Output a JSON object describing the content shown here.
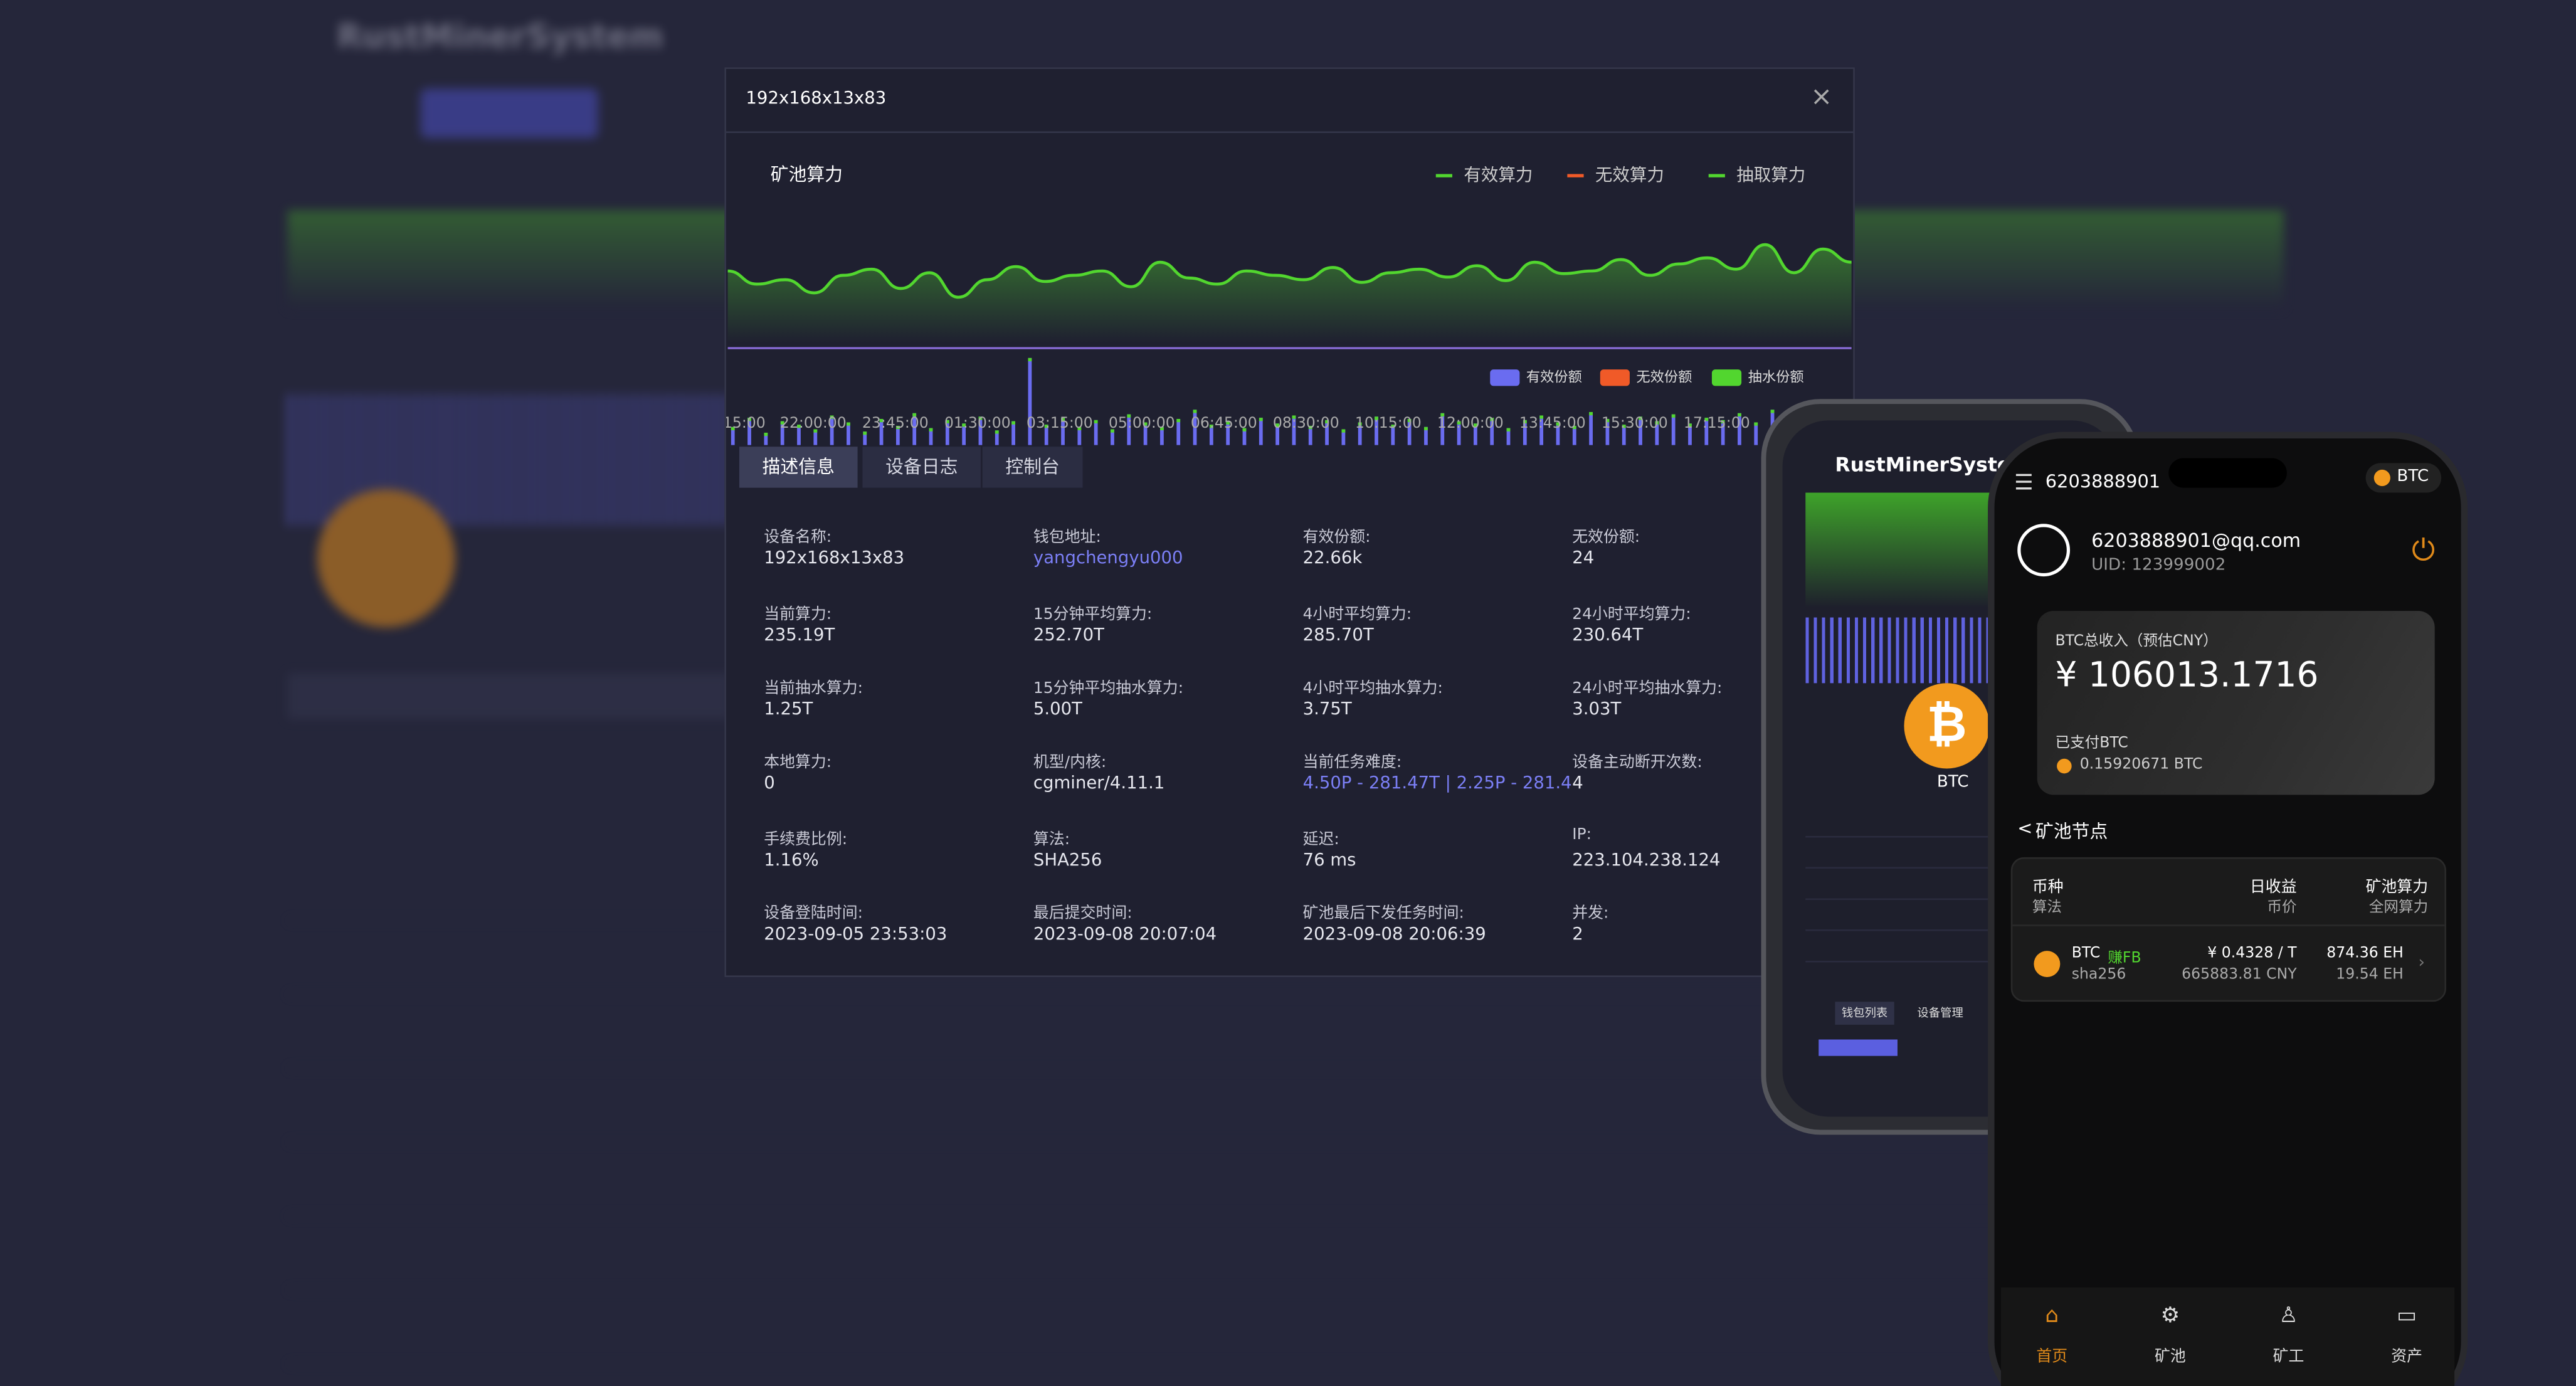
{
  "background": {
    "brand": "RustMinerSystem"
  },
  "modal": {
    "title": "192x168x13x83",
    "chart": {
      "title": "矿池算力",
      "line_legend": [
        "有效算力",
        "无效算力",
        "抽取算力"
      ],
      "line_colors": [
        "#52d62f",
        "#f05a28",
        "#52d62f"
      ],
      "bar_legend": [
        "有效份额",
        "无效份额",
        "抽水份额"
      ],
      "bar_colors": [
        "#6a6cf0",
        "#f05a28",
        "#52d62f"
      ],
      "x_labels": [
        "15:00",
        "22:00:00",
        "23:45:00",
        "01:30:00",
        "03:15:00",
        "05:00:00",
        "06:45:00",
        "08:30:00",
        "10:15:00",
        "12:00:00",
        "13:45:00",
        "15:30:00",
        "17:15:00"
      ],
      "hashrate_values": [
        60,
        45,
        50,
        35,
        55,
        62,
        40,
        58,
        30,
        50,
        65,
        48,
        55,
        60,
        42,
        70,
        52,
        45,
        60,
        55,
        50,
        64,
        47,
        58,
        62,
        53,
        66,
        49,
        70,
        57,
        60,
        73,
        55,
        68,
        75,
        62,
        90,
        58,
        85,
        70
      ],
      "share_values": [
        40,
        48,
        35,
        45,
        42,
        38,
        50,
        44,
        36,
        47,
        41,
        52,
        39,
        46,
        43,
        49,
        37,
        45,
        100,
        42,
        48,
        40,
        46,
        38,
        51,
        44,
        40,
        47,
        55,
        42,
        45,
        39,
        48,
        43,
        50,
        41,
        46,
        38,
        44,
        49,
        42,
        47,
        40,
        52,
        45,
        43,
        48,
        39,
        46,
        50,
        44,
        41,
        53,
        47,
        42,
        49,
        45,
        51,
        43,
        48,
        46,
        52,
        44,
        55,
        47,
        50,
        58,
        45
      ]
    },
    "tabs": [
      "描述信息",
      "设备日志",
      "控制台"
    ],
    "fields": [
      {
        "label": "设备名称:",
        "value": "192x168x13x83"
      },
      {
        "label": "钱包地址:",
        "value": "yangchengyu000"
      },
      {
        "label": "有效份额:",
        "value": "22.66k"
      },
      {
        "label": "无效份额:",
        "value": "24"
      },
      {
        "label": "当前算力:",
        "value": "235.19T"
      },
      {
        "label": "15分钟平均算力:",
        "value": "252.70T"
      },
      {
        "label": "4小时平均算力:",
        "value": "285.70T"
      },
      {
        "label": "24小时平均算力:",
        "value": "230.64T"
      },
      {
        "label": "当前抽水算力:",
        "value": "1.25T"
      },
      {
        "label": "15分钟平均抽水算力:",
        "value": "5.00T"
      },
      {
        "label": "4小时平均抽水算力:",
        "value": "3.75T"
      },
      {
        "label": "24小时平均抽水算力:",
        "value": "3.03T"
      },
      {
        "label": "本地算力:",
        "value": "0"
      },
      {
        "label": "机型/内核:",
        "value": "cgminer/4.11.1"
      },
      {
        "label": "当前任务难度:",
        "value": "4.50P - 281.47T | 2.25P - 281.4"
      },
      {
        "label": "设备主动断开次数:",
        "value": "4"
      },
      {
        "label": "手续费比例:",
        "value": "1.16%"
      },
      {
        "label": "算法:",
        "value": "SHA256"
      },
      {
        "label": "延迟:",
        "value": "76 ms"
      },
      {
        "label": "IP:",
        "value": "223.104.238.124"
      },
      {
        "label": "设备登陆时间:",
        "value": "2023-09-05 23:53:03"
      },
      {
        "label": "最后提交时间:",
        "value": "2023-09-08 20:07:04"
      },
      {
        "label": "矿池最后下发任务时间:",
        "value": "2023-09-08 20:06:39"
      },
      {
        "label": "并发:",
        "value": "2"
      }
    ]
  },
  "phone_back": {
    "brand": "RustMinerSystem",
    "coin": "BTC",
    "tabs": [
      "钱包列表",
      "设备管理"
    ]
  },
  "phone": {
    "account": "6203888901",
    "coin": "BTC",
    "email": "6203888901@qq.com",
    "uid": "UID: 123999002",
    "income_label": "BTC总收入（预估CNY）",
    "income": "¥ 106013.1716",
    "paid_label": "已支付BTC",
    "paid": "0.15920671 BTC",
    "section": "矿池节点",
    "table": {
      "headers": [
        [
          "币种",
          "算法"
        ],
        [
          "日收益",
          "币价"
        ],
        [
          "矿池算力",
          "全网算力"
        ]
      ],
      "row": {
        "coin": "BTC",
        "tag": "赚FB",
        "algo": "sha256",
        "income": "¥ 0.4328 / T",
        "price": "665883.81 CNY",
        "pool": "874.36 EH",
        "network": "19.54 EH"
      }
    },
    "nav": [
      "首页",
      "矿池",
      "矿工",
      "资产"
    ]
  }
}
